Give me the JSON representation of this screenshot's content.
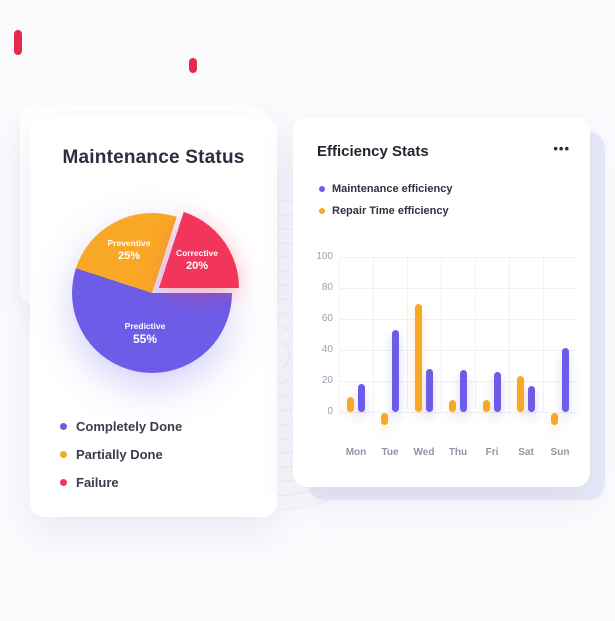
{
  "page": {
    "background": "#FBFBFE",
    "accent_color": "#E62A4F"
  },
  "icons": {
    "more_options": "•••"
  },
  "cards": {
    "maintenance": {
      "title": "Maintenance Status",
      "legend": [
        {
          "label": "Completely Done",
          "color": "#6C5CE7"
        },
        {
          "label": "Partially Done",
          "color": "#F9A826"
        },
        {
          "label": "Failure",
          "color": "#F2355B"
        }
      ]
    },
    "efficiency": {
      "title": "Efficiency Stats"
    }
  },
  "chart_data": [
    {
      "type": "pie",
      "title": "Maintenance Status",
      "labels": [
        "Preventive",
        "Corrective",
        "Predictive"
      ],
      "values": [
        25,
        20,
        55
      ],
      "value_labels": [
        "25%",
        "20%",
        "55%"
      ],
      "colors": [
        "#F9A826",
        "#F2355B",
        "#6C5CE7"
      ],
      "start_angle_deg": -72,
      "exploded_slice": "Corrective",
      "legend": [
        "Completely Done",
        "Partially Done",
        "Failure"
      ]
    },
    {
      "type": "bar",
      "title": "Efficiency Stats",
      "categories": [
        "Mon",
        "Tue",
        "Wed",
        "Thu",
        "Fri",
        "Sat",
        "Sun"
      ],
      "series": [
        {
          "name": "Maintenance efficiency",
          "color": "#6C5CE7",
          "values": [
            18,
            53,
            28,
            27,
            26,
            17,
            41
          ]
        },
        {
          "name": "Repair Time efficiency",
          "color": "#F9A826",
          "values": [
            10,
            -8,
            70,
            8,
            8,
            23,
            -8
          ]
        }
      ],
      "yticks": [
        100,
        80,
        60,
        40,
        20,
        0
      ],
      "ylim": [
        -15,
        100
      ],
      "grid": true,
      "legend_position": "top-left"
    }
  ]
}
